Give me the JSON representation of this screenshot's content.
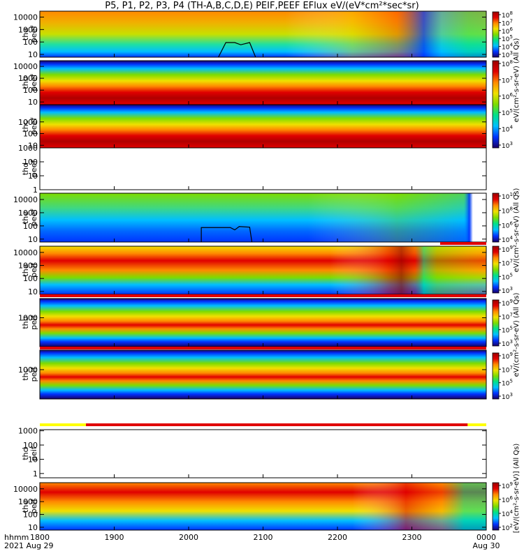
{
  "title": "P5, P1, P2, P3, P4 (TH-A,B,C,D,E) PEIF,PEEF EFlux eV/(eV*cm²*sec*sr)",
  "time_axis": {
    "row1_label": "hhmm",
    "row2_label": "2021",
    "ticks": [
      "1800",
      "1900",
      "2000",
      "2100",
      "2200",
      "2300",
      "0000"
    ],
    "tick_hours": [
      18,
      19,
      20,
      21,
      22,
      23,
      24
    ],
    "date_labels": [
      {
        "text": "Aug 29",
        "hour": 18
      },
      {
        "text": "Aug 30",
        "hour": 24
      }
    ]
  },
  "colors": {
    "colormap": [
      "#1a0066",
      "#0033ff",
      "#00bfff",
      "#00e08a",
      "#7ddc00",
      "#f0e000",
      "#ff8a00",
      "#e00000",
      "#9c0000"
    ],
    "status_red": "#e00000",
    "status_yellow": "#ffff00",
    "contour": "#000000",
    "background": "#ffffff"
  },
  "colorbars": [
    {
      "id": "peef-a",
      "tick_labels": [
        "10^8",
        "10^7",
        "10^6",
        "10^5",
        "10^4",
        "10^3"
      ]
    },
    {
      "id": "peef-bc",
      "tick_labels": [
        "10^8",
        "10^7",
        "10^6",
        "10^5",
        "10^4",
        "10^3"
      ]
    },
    {
      "id": "peef-e",
      "tick_labels": [
        "10^10",
        "10^8",
        "10^6",
        "10^4"
      ]
    },
    {
      "id": "peif-a",
      "tick_labels": [
        "10^9",
        "10^7",
        "10^5",
        "10^3"
      ]
    },
    {
      "id": "peif-b",
      "tick_labels": [
        "10^9",
        "10^7",
        "10^5",
        "10^3"
      ]
    },
    {
      "id": "peif-c",
      "tick_labels": [
        "10^9",
        "10^7",
        "10^5",
        "10^3"
      ]
    },
    {
      "id": "peif-e",
      "tick_labels": [
        "10^9",
        "10^6",
        "10^4",
        "10^2"
      ]
    }
  ],
  "colorbar_titles": [
    "eV/(cm²-s-sr-eV) (All Qs)",
    "eV/(cm²-s-sr-eV) (All Qs)",
    "eV/(cm²-s-sr-eV) (All Qs)",
    "[eV/(cm²-s-sr-eV)] (All Qs)"
  ],
  "chart_data": [
    {
      "type": "heatmap",
      "probe": "tha",
      "product": "peef",
      "ylabel": [
        "tha",
        "peef"
      ],
      "yscale": "log",
      "ylim": [
        6,
        30000
      ],
      "yticks": [
        "10000",
        "1000",
        "100",
        "10"
      ],
      "profile": "peef_a",
      "contour": [
        [
          20.4,
          6
        ],
        [
          20.5,
          90
        ],
        [
          20.62,
          90
        ],
        [
          20.7,
          60
        ],
        [
          20.82,
          90
        ],
        [
          20.9,
          5
        ]
      ],
      "status_bar": null
    },
    {
      "type": "heatmap",
      "probe": "thb",
      "product": "peef",
      "ylabel": [
        "thb",
        "peef"
      ],
      "yscale": "log",
      "ylim": [
        6,
        30000
      ],
      "yticks": [
        "10000",
        "1000",
        "100",
        "10"
      ],
      "profile": "peef_bc",
      "contour": null,
      "status_bar": null
    },
    {
      "type": "heatmap",
      "probe": "thc",
      "product": "peef",
      "ylabel": [
        "thc",
        "peef"
      ],
      "yscale": "log",
      "ylim": [
        6,
        30000
      ],
      "yticks": [
        "1000",
        "100",
        "10"
      ],
      "profile": "peef_bc",
      "contour": null,
      "status_bar": null
    },
    {
      "type": "heatmap",
      "probe": "thd",
      "product": "peef",
      "ylabel": [
        "thd",
        "peef"
      ],
      "yscale": "log",
      "ylim": [
        1,
        1000
      ],
      "yticks": [
        "1000",
        "100",
        "10",
        "1"
      ],
      "profile": "empty",
      "contour": null,
      "status_bar": null
    },
    {
      "type": "heatmap",
      "probe": "the",
      "product": "peef",
      "ylabel": [
        "the",
        "peef"
      ],
      "yscale": "log",
      "ylim": [
        6,
        30000
      ],
      "yticks": [
        "10000",
        "1000",
        "100",
        "10"
      ],
      "profile": "peef_e",
      "contour": [
        [
          20.17,
          6
        ],
        [
          20.17,
          75
        ],
        [
          20.56,
          75
        ],
        [
          20.62,
          50
        ],
        [
          20.68,
          90
        ],
        [
          20.82,
          80
        ],
        [
          20.85,
          6
        ]
      ],
      "status_bar": [
        {
          "from": 23.38,
          "to": 24,
          "color": "red"
        }
      ]
    },
    {
      "type": "heatmap",
      "probe": "tha",
      "product": "peif",
      "ylabel": [
        "tha",
        "peif"
      ],
      "yscale": "log",
      "ylim": [
        6,
        30000
      ],
      "yticks": [
        "10000",
        "1000",
        "100",
        "10"
      ],
      "profile": "peif_a",
      "contour": null,
      "status_bar": [
        {
          "from": 18,
          "to": 24,
          "color": "red"
        }
      ]
    },
    {
      "type": "heatmap",
      "probe": "thb",
      "product": "peif",
      "ylabel": [
        "thb",
        "peif"
      ],
      "yscale": "log",
      "ylim": [
        6,
        30000
      ],
      "yticks": [
        "1000"
      ],
      "profile": "peif_bc",
      "contour": null,
      "status_bar": [
        {
          "from": 18,
          "to": 24,
          "color": "red"
        }
      ]
    },
    {
      "type": "heatmap",
      "probe": "thc",
      "product": "peif",
      "ylabel": [
        "thc",
        "peif"
      ],
      "yscale": "log",
      "ylim": [
        6,
        30000
      ],
      "yticks": [
        "1000"
      ],
      "profile": "peif_bc",
      "contour": null,
      "status_bar": null
    },
    {
      "type": "heatmap",
      "probe": "thd",
      "product": "peif",
      "ylabel": [
        "thd",
        "peif"
      ],
      "yscale": "log",
      "ylim": [
        0.5,
        1200
      ],
      "yticks": [
        "1000",
        "100",
        "10",
        "1"
      ],
      "profile": "empty",
      "contour": null,
      "status_bar": [
        {
          "from": 18,
          "to": 18.62,
          "color": "yellow"
        },
        {
          "from": 18.62,
          "to": 23.75,
          "color": "red"
        },
        {
          "from": 23.75,
          "to": 24,
          "color": "yellow"
        }
      ]
    },
    {
      "type": "heatmap",
      "probe": "the",
      "product": "peif",
      "ylabel": [
        "the",
        "peif"
      ],
      "yscale": "log",
      "ylim": [
        6,
        30000
      ],
      "yticks": [
        "10000",
        "1000",
        "100",
        "10"
      ],
      "profile": "peif_e",
      "contour": null,
      "status_bar": null
    }
  ]
}
